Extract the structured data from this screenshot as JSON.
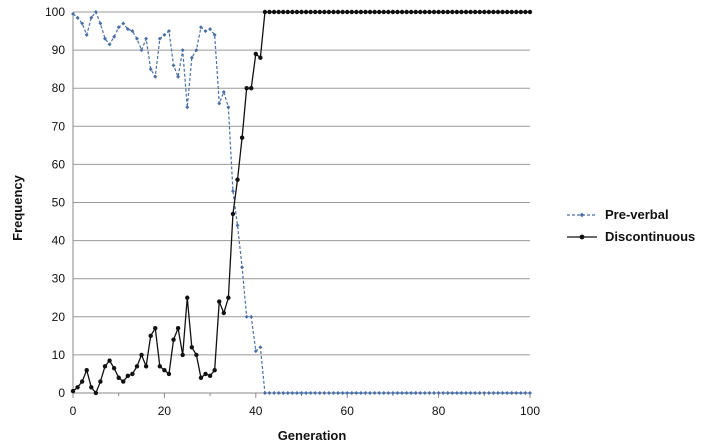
{
  "chart_data": {
    "type": "line",
    "title": "",
    "xlabel": "Generation",
    "ylabel": "Frequency",
    "xlim": [
      0,
      100
    ],
    "ylim": [
      0,
      100
    ],
    "x_ticks": [
      "0",
      "20",
      "40",
      "60",
      "80",
      "100"
    ],
    "y_ticks": [
      "0",
      "10",
      "20",
      "30",
      "40",
      "50",
      "60",
      "70",
      "80",
      "90",
      "100"
    ],
    "grid": "horizontal",
    "legend_position": "right",
    "series": [
      {
        "name": "Pre-verbal",
        "color": "#4a6fa5",
        "line_style": "dashed",
        "marker": "small-diamond",
        "x": [
          0,
          1,
          2,
          3,
          4,
          5,
          6,
          7,
          8,
          9,
          10,
          11,
          12,
          13,
          14,
          15,
          16,
          17,
          18,
          19,
          20,
          21,
          22,
          23,
          24,
          25,
          26,
          27,
          28,
          29,
          30,
          31,
          32,
          33,
          34,
          35,
          36,
          37,
          38,
          39,
          40,
          41,
          42,
          43,
          44,
          45,
          46,
          47,
          48,
          49,
          50,
          51,
          52,
          53,
          54,
          55,
          56,
          57,
          58,
          59,
          60,
          61,
          62,
          63,
          64,
          65,
          66,
          67,
          68,
          69,
          70,
          71,
          72,
          73,
          74,
          75,
          76,
          77,
          78,
          79,
          80,
          81,
          82,
          83,
          84,
          85,
          86,
          87,
          88,
          89,
          90,
          91,
          92,
          93,
          94,
          95,
          96,
          97,
          98,
          99,
          100
        ],
        "y": [
          99.5,
          98.5,
          97,
          94,
          98.5,
          100,
          97,
          93,
          91.5,
          93.5,
          96,
          97,
          95.5,
          95,
          93,
          90,
          93,
          85,
          83,
          93,
          94,
          95,
          86,
          83,
          90,
          75,
          88,
          90,
          96,
          95,
          95.5,
          94,
          76,
          79,
          75,
          53,
          44,
          33,
          20,
          20,
          11,
          12,
          0,
          0,
          0,
          0,
          0,
          0,
          0,
          0,
          0,
          0,
          0,
          0,
          0,
          0,
          0,
          0,
          0,
          0,
          0,
          0,
          0,
          0,
          0,
          0,
          0,
          0,
          0,
          0,
          0,
          0,
          0,
          0,
          0,
          0,
          0,
          0,
          0,
          0,
          0,
          0,
          0,
          0,
          0,
          0,
          0,
          0,
          0,
          0,
          0,
          0,
          0,
          0,
          0,
          0,
          0,
          0,
          0,
          0,
          0
        ]
      },
      {
        "name": "Discontinuous",
        "color": "#111111",
        "line_style": "solid",
        "marker": "dot",
        "x": [
          0,
          1,
          2,
          3,
          4,
          5,
          6,
          7,
          8,
          9,
          10,
          11,
          12,
          13,
          14,
          15,
          16,
          17,
          18,
          19,
          20,
          21,
          22,
          23,
          24,
          25,
          26,
          27,
          28,
          29,
          30,
          31,
          32,
          33,
          34,
          35,
          36,
          37,
          38,
          39,
          40,
          41,
          42,
          43,
          44,
          45,
          46,
          47,
          48,
          49,
          50,
          51,
          52,
          53,
          54,
          55,
          56,
          57,
          58,
          59,
          60,
          61,
          62,
          63,
          64,
          65,
          66,
          67,
          68,
          69,
          70,
          71,
          72,
          73,
          74,
          75,
          76,
          77,
          78,
          79,
          80,
          81,
          82,
          83,
          84,
          85,
          86,
          87,
          88,
          89,
          90,
          91,
          92,
          93,
          94,
          95,
          96,
          97,
          98,
          99,
          100
        ],
        "y": [
          0.5,
          1.5,
          3,
          6,
          1.5,
          0,
          3,
          7,
          8.5,
          6.5,
          4,
          3,
          4.5,
          5,
          7,
          10,
          7,
          15,
          17,
          7,
          6,
          5,
          14,
          17,
          10,
          25,
          12,
          10,
          4,
          5,
          4.5,
          6,
          24,
          21,
          25,
          47,
          56,
          67,
          80,
          80,
          89,
          88,
          100,
          100,
          100,
          100,
          100,
          100,
          100,
          100,
          100,
          100,
          100,
          100,
          100,
          100,
          100,
          100,
          100,
          100,
          100,
          100,
          100,
          100,
          100,
          100,
          100,
          100,
          100,
          100,
          100,
          100,
          100,
          100,
          100,
          100,
          100,
          100,
          100,
          100,
          100,
          100,
          100,
          100,
          100,
          100,
          100,
          100,
          100,
          100,
          100,
          100,
          100,
          100,
          100,
          100,
          100,
          100,
          100,
          100,
          100
        ]
      }
    ]
  }
}
